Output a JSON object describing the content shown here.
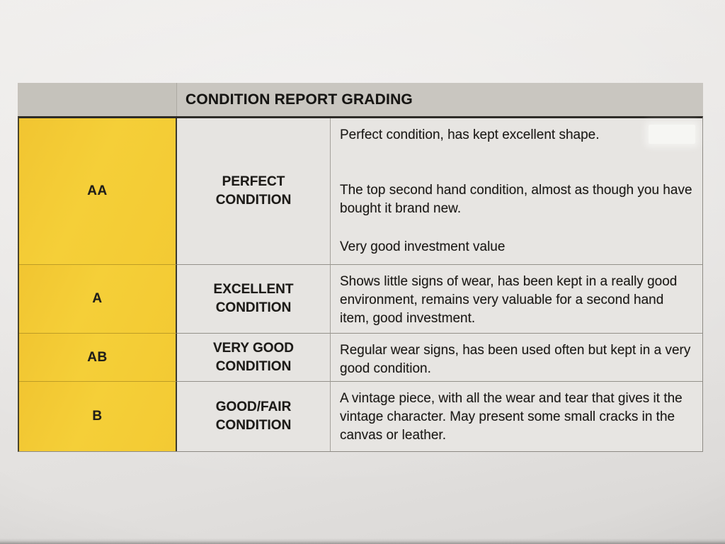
{
  "document": {
    "type": "photographed printed table",
    "table": {
      "header_title": "CONDITION REPORT GRADING",
      "rows": [
        {
          "grade": "AA",
          "condition": "PERFECT CONDITION",
          "description_paragraphs": [
            "Perfect condition, has kept excellent shape.",
            "The top second hand condition, almost as though you have bought it brand new.",
            "Very good investment value"
          ]
        },
        {
          "grade": "A",
          "condition": "EXCELLENT CONDITION",
          "description_paragraphs": [
            "Shows little signs of wear, has been kept in a really good environment, remains very valuable for a second hand item, good investment."
          ]
        },
        {
          "grade": "AB",
          "condition": "VERY GOOD CONDITION",
          "description_paragraphs": [
            "Regular wear signs, has been used often but kept in a very good condition."
          ]
        },
        {
          "grade": "B",
          "condition": "GOOD/FAIR CONDITION",
          "description_paragraphs": [
            "A vintage piece, with all the wear and tear that gives it the vintage character. May present some small cracks in the canvas or leather."
          ]
        }
      ],
      "colors": {
        "grade_cell_yellow": "#f3cb34",
        "header_gray": "#c8c5bf",
        "cell_background": "#e6e4e1",
        "paper_background": "#e8e6e4",
        "text": "#1d1b18"
      }
    }
  }
}
